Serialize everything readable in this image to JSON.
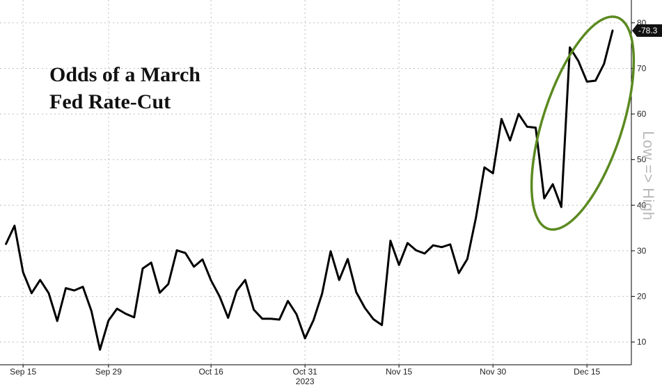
{
  "chart_data": {
    "type": "line",
    "title_lines": [
      "Odds of a March",
      "Fed Rate-Cut"
    ],
    "xlabel": "2023",
    "ylabel": "Low => High",
    "ylim": [
      5,
      85
    ],
    "yticks": [
      10,
      20,
      30,
      40,
      50,
      60,
      70,
      80
    ],
    "xticks": [
      {
        "label": "Sep 15",
        "i": 2
      },
      {
        "label": "Sep 29",
        "i": 12
      },
      {
        "label": "Oct 16",
        "i": 24
      },
      {
        "label": "Oct 31",
        "i": 35
      },
      {
        "label": "Nov 15",
        "i": 46
      },
      {
        "label": "Nov 30",
        "i": 57
      },
      {
        "label": "Dec 15",
        "i": 68
      }
    ],
    "x_range": [
      -0.7,
      73.2
    ],
    "grid": true,
    "last_value_label": "78.3",
    "highlight": "green ellipse around December surge",
    "series": [
      {
        "color": "#000000",
        "values": [
          31.5,
          35.5,
          25.3,
          20.7,
          23.6,
          20.7,
          14.6,
          21.8,
          21.3,
          22.1,
          16.8,
          8.3,
          14.7,
          17.3,
          16.2,
          15.4,
          26.1,
          27.4,
          20.8,
          22.7,
          30.1,
          29.5,
          26.5,
          28.1,
          23.5,
          20.0,
          15.3,
          21.2,
          23.6,
          17.1,
          15.1,
          15.1,
          14.9,
          19.0,
          16.1,
          10.8,
          14.8,
          20.6,
          29.9,
          23.6,
          28.2,
          20.9,
          17.5,
          15.0,
          13.7,
          32.2,
          26.9,
          31.7,
          30.1,
          29.4,
          31.2,
          30.8,
          31.4,
          25.1,
          28.2,
          37.2,
          48.3,
          47.0,
          58.9,
          54.2,
          60.0,
          57.2,
          57.0,
          41.5,
          44.6,
          39.6,
          74.6,
          71.6,
          67.1,
          67.3,
          71.0,
          78.3
        ]
      }
    ],
    "colors": {
      "line": "#000000",
      "grid": "#bdbdbd",
      "ellipse": "#5b8a20",
      "last_label_bg": "#111111",
      "ylabel": "#b9b9b9"
    }
  }
}
